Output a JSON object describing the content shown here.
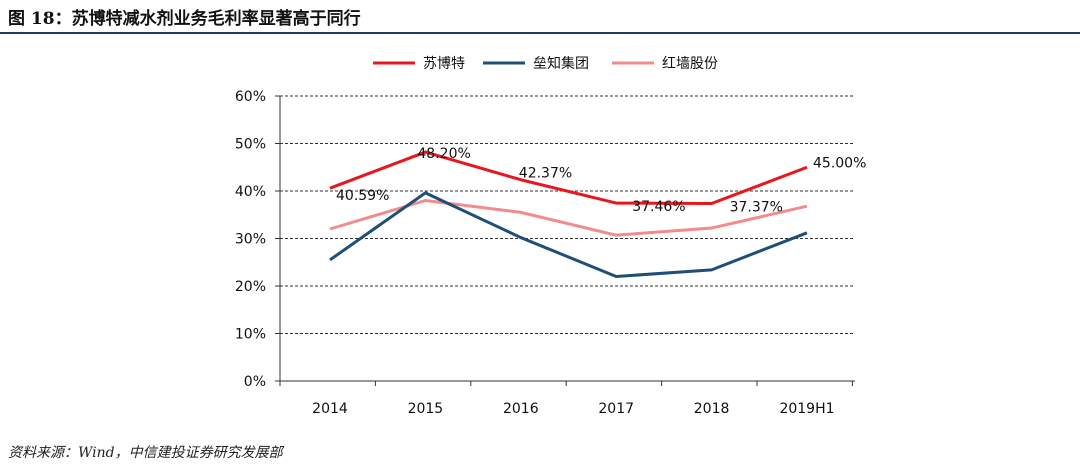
{
  "header": {
    "title": "图 18：苏博特减水剂业务毛利率显著高于同行"
  },
  "footer": {
    "source": "资料来源：Wind，中信建投证券研究发展部"
  },
  "chart_data": {
    "type": "line",
    "categories": [
      "2014",
      "2015",
      "2016",
      "2017",
      "2018",
      "2019H1"
    ],
    "series": [
      {
        "name": "苏博特",
        "color": "#e8161d",
        "values": [
          40.59,
          48.2,
          42.37,
          37.46,
          37.37,
          45.0
        ],
        "labels": [
          "40.59%",
          "48.20%",
          "42.37%",
          "37.46%",
          "37.37%",
          "45.00%"
        ]
      },
      {
        "name": "垒知集团",
        "color": "#1f4e79",
        "values": [
          25.5,
          39.6,
          30.2,
          22.0,
          23.4,
          31.2
        ]
      },
      {
        "name": "红墙股份",
        "color": "#f28b8b",
        "values": [
          32.0,
          38.0,
          35.5,
          30.7,
          32.2,
          36.8
        ]
      }
    ],
    "yticks": [
      "0%",
      "10%",
      "20%",
      "30%",
      "40%",
      "50%",
      "60%"
    ],
    "ylim": [
      0,
      60
    ],
    "grid": "dashed horizontal",
    "legend": "top"
  }
}
